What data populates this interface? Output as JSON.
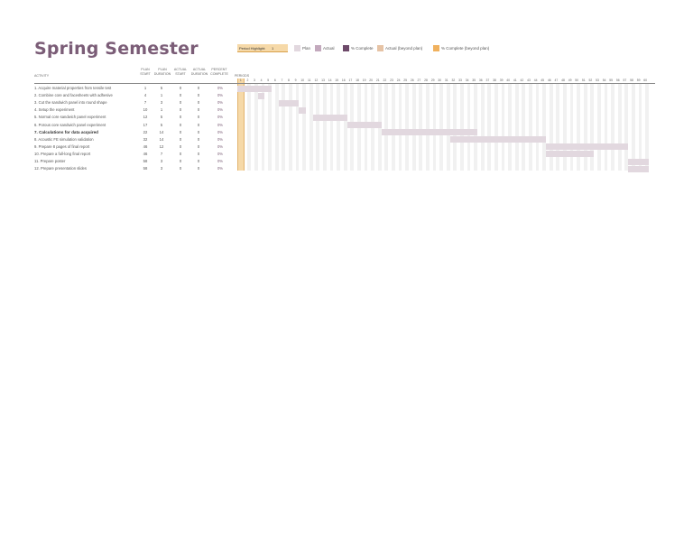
{
  "title": "Spring Semester",
  "legend": {
    "period_highlight_label": "Period Highlight:",
    "period_highlight_value": "1",
    "plan": "Plan",
    "actual": "Actual",
    "percent_complete": "% Complete",
    "actual_beyond": "Actual (beyond plan)",
    "percent_beyond": "% Complete (beyond plan)",
    "colors": {
      "highlight": "#f6d9a8",
      "plan": "#e2d8df",
      "actual": "#c3a9bd",
      "complete": "#6e4a6a",
      "actual_beyond": "#e6c3a5",
      "complete_beyond": "#f0b15e"
    }
  },
  "headers": {
    "activity": "ACTIVITY",
    "plan_start": [
      "PLAN",
      "START"
    ],
    "plan_duration": [
      "PLAN",
      "DURATION"
    ],
    "actual_start": [
      "ACTUAL",
      "START"
    ],
    "actual_duration": [
      "ACTUAL",
      "DURATION"
    ],
    "percent_complete": [
      "PERCENT",
      "COMPLETE"
    ],
    "periods": "PERIODS"
  },
  "periods": [
    "1",
    "2",
    "3",
    "4",
    "5",
    "6",
    "7",
    "8",
    "9",
    "10",
    "11",
    "12",
    "13",
    "14",
    "15",
    "16",
    "17",
    "18",
    "19",
    "20",
    "21",
    "22",
    "23",
    "24",
    "25",
    "26",
    "27",
    "28",
    "29",
    "30",
    "31",
    "32",
    "33",
    "34",
    "35",
    "36",
    "37",
    "38",
    "39",
    "40",
    "41",
    "42",
    "43",
    "44",
    "45",
    "46",
    "47",
    "48",
    "49",
    "50",
    "51",
    "52",
    "53",
    "54",
    "55",
    "56",
    "57",
    "58",
    "59",
    "60"
  ],
  "rows": [
    {
      "activity": "1. Acquire material properties from tensile test",
      "plan_start": "1",
      "plan_duration": "5",
      "actual_start": "0",
      "actual_duration": "0",
      "pct": "0%",
      "bold": false
    },
    {
      "activity": "2. Combine core and facesheets with adhesive",
      "plan_start": "4",
      "plan_duration": "1",
      "actual_start": "0",
      "actual_duration": "0",
      "pct": "0%",
      "bold": false
    },
    {
      "activity": "3. Cut the sandwich panel into round shape",
      "plan_start": "7",
      "plan_duration": "3",
      "actual_start": "0",
      "actual_duration": "0",
      "pct": "0%",
      "bold": false
    },
    {
      "activity": "4. Setup the experiment",
      "plan_start": "10",
      "plan_duration": "1",
      "actual_start": "0",
      "actual_duration": "0",
      "pct": "0%",
      "bold": false
    },
    {
      "activity": "5. Normal core sandwich panel experiment",
      "plan_start": "12",
      "plan_duration": "5",
      "actual_start": "0",
      "actual_duration": "0",
      "pct": "0%",
      "bold": false
    },
    {
      "activity": "6. Porous core sandwich panel experiment",
      "plan_start": "17",
      "plan_duration": "5",
      "actual_start": "0",
      "actual_duration": "0",
      "pct": "0%",
      "bold": false
    },
    {
      "activity": "7. Calculations for data acquired",
      "plan_start": "22",
      "plan_duration": "14",
      "actual_start": "0",
      "actual_duration": "0",
      "pct": "0%",
      "bold": true
    },
    {
      "activity": "8. Acoustic FE simulation validation",
      "plan_start": "32",
      "plan_duration": "14",
      "actual_start": "0",
      "actual_duration": "0",
      "pct": "0%",
      "bold": false
    },
    {
      "activity": "9. Prepare 8 pages of final report",
      "plan_start": "46",
      "plan_duration": "12",
      "actual_start": "0",
      "actual_duration": "0",
      "pct": "0%",
      "bold": false
    },
    {
      "activity": "10. Prepare a full-long final report",
      "plan_start": "46",
      "plan_duration": "7",
      "actual_start": "0",
      "actual_duration": "0",
      "pct": "0%",
      "bold": false
    },
    {
      "activity": "11. Prepare poster",
      "plan_start": "58",
      "plan_duration": "3",
      "actual_start": "0",
      "actual_duration": "0",
      "pct": "0%",
      "bold": false
    },
    {
      "activity": "12. Prepare presentation slides",
      "plan_start": "58",
      "plan_duration": "3",
      "actual_start": "0",
      "actual_duration": "0",
      "pct": "0%",
      "bold": false
    }
  ]
}
